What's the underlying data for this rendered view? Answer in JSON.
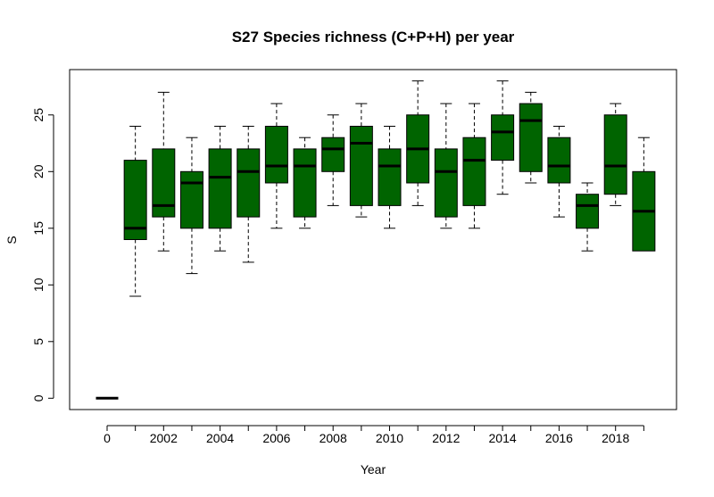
{
  "chart_data": {
    "type": "boxplot",
    "title": "S27 Species richness (C+P+H) per year",
    "xlabel": "Year",
    "ylabel": "S",
    "ylim": [
      -1,
      29
    ],
    "yticks": [
      0,
      5,
      10,
      15,
      20,
      25
    ],
    "categories": [
      "0",
      "2001",
      "2002",
      "2003",
      "2004",
      "2005",
      "2006",
      "2007",
      "2008",
      "2009",
      "2010",
      "2011",
      "2012",
      "2013",
      "2014",
      "2015",
      "2016",
      "2017",
      "2018",
      "2019"
    ],
    "xtick_labels_shown": [
      "0",
      "2002",
      "2004",
      "2006",
      "2008",
      "2010",
      "2012",
      "2014",
      "2016",
      "2018"
    ],
    "fill_color": "#006400",
    "series": [
      {
        "category": "0",
        "whisker_low": 0,
        "q1": 0,
        "median": 0,
        "q3": 0,
        "whisker_high": 0
      },
      {
        "category": "2001",
        "whisker_low": 9,
        "q1": 14,
        "median": 15,
        "q3": 21,
        "whisker_high": 24
      },
      {
        "category": "2002",
        "whisker_low": 13,
        "q1": 16,
        "median": 17,
        "q3": 22,
        "whisker_high": 27
      },
      {
        "category": "2003",
        "whisker_low": 11,
        "q1": 15,
        "median": 19,
        "q3": 20,
        "whisker_high": 23
      },
      {
        "category": "2004",
        "whisker_low": 13,
        "q1": 15,
        "median": 19.5,
        "q3": 22,
        "whisker_high": 24
      },
      {
        "category": "2005",
        "whisker_low": 12,
        "q1": 16,
        "median": 20,
        "q3": 22,
        "whisker_high": 24
      },
      {
        "category": "2006",
        "whisker_low": 15,
        "q1": 19,
        "median": 20.5,
        "q3": 24,
        "whisker_high": 26
      },
      {
        "category": "2007",
        "whisker_low": 15,
        "q1": 16,
        "median": 20.5,
        "q3": 22,
        "whisker_high": 23
      },
      {
        "category": "2008",
        "whisker_low": 17,
        "q1": 20,
        "median": 22,
        "q3": 23,
        "whisker_high": 25
      },
      {
        "category": "2009",
        "whisker_low": 16,
        "q1": 17,
        "median": 22.5,
        "q3": 24,
        "whisker_high": 26
      },
      {
        "category": "2010",
        "whisker_low": 15,
        "q1": 17,
        "median": 20.5,
        "q3": 22,
        "whisker_high": 24
      },
      {
        "category": "2011",
        "whisker_low": 17,
        "q1": 19,
        "median": 22,
        "q3": 25,
        "whisker_high": 28
      },
      {
        "category": "2012",
        "whisker_low": 15,
        "q1": 16,
        "median": 20,
        "q3": 22,
        "whisker_high": 26
      },
      {
        "category": "2013",
        "whisker_low": 15,
        "q1": 17,
        "median": 21,
        "q3": 23,
        "whisker_high": 26
      },
      {
        "category": "2014",
        "whisker_low": 18,
        "q1": 21,
        "median": 23.5,
        "q3": 25,
        "whisker_high": 28
      },
      {
        "category": "2015",
        "whisker_low": 19,
        "q1": 20,
        "median": 24.5,
        "q3": 26,
        "whisker_high": 27
      },
      {
        "category": "2016",
        "whisker_low": 16,
        "q1": 19,
        "median": 20.5,
        "q3": 23,
        "whisker_high": 24
      },
      {
        "category": "2017",
        "whisker_low": 13,
        "q1": 15,
        "median": 17,
        "q3": 18,
        "whisker_high": 19
      },
      {
        "category": "2018",
        "whisker_low": 17,
        "q1": 18,
        "median": 20.5,
        "q3": 25,
        "whisker_high": 26
      },
      {
        "category": "2019",
        "whisker_low": 13,
        "q1": 13,
        "median": 16.5,
        "q3": 20,
        "whisker_high": 23
      }
    ]
  }
}
